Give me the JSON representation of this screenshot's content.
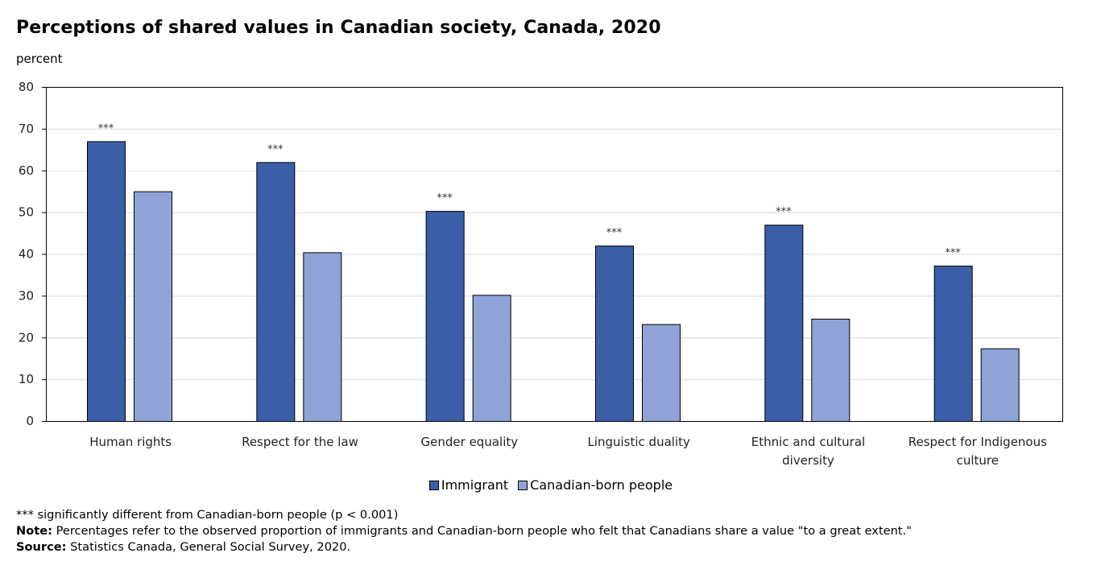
{
  "title": "Perceptions of shared values in Canadian society, Canada, 2020",
  "unit_label": "percent",
  "colors": {
    "immigrant": "#3a5fa8",
    "canadian_born": "#8fa3d6",
    "grid": "#d9d9d9",
    "axis": "#000000"
  },
  "legend": {
    "immigrant": "Immigrant",
    "canadian_born": "Canadian-born people"
  },
  "footnotes": {
    "significance": "*** significantly different from Canadian-born people (p < 0.001)",
    "note_label": "Note:",
    "note_text": " Percentages refer to the observed proportion of immigrants and Canadian-born people who felt that Canadians share a value \"to a great extent.\"",
    "source_label": "Source:",
    "source_text": " Statistics Canada, General Social Survey, 2020."
  },
  "chart_data": {
    "type": "bar",
    "title": "Perceptions of shared values in Canadian society, Canada, 2020",
    "ylabel": "percent",
    "xlabel": "",
    "ylim": [
      0,
      80
    ],
    "yticks": [
      0,
      10,
      20,
      30,
      40,
      50,
      60,
      70,
      80
    ],
    "grid": true,
    "legend_position": "bottom",
    "categories": [
      [
        "Human rights"
      ],
      [
        "Respect for the law"
      ],
      [
        "Gender equality"
      ],
      [
        "Linguistic duality"
      ],
      [
        "Ethnic and cultural",
        "diversity"
      ],
      [
        "Respect for Indigenous",
        "culture"
      ]
    ],
    "series": [
      {
        "name": "Immigrant",
        "values": [
          67,
          62,
          50.3,
          42,
          47,
          37.2
        ],
        "significance": [
          "***",
          "***",
          "***",
          "***",
          "***",
          "***"
        ]
      },
      {
        "name": "Canadian-born people",
        "values": [
          55,
          40.4,
          30.2,
          23.2,
          24.5,
          17.4
        ]
      }
    ]
  }
}
